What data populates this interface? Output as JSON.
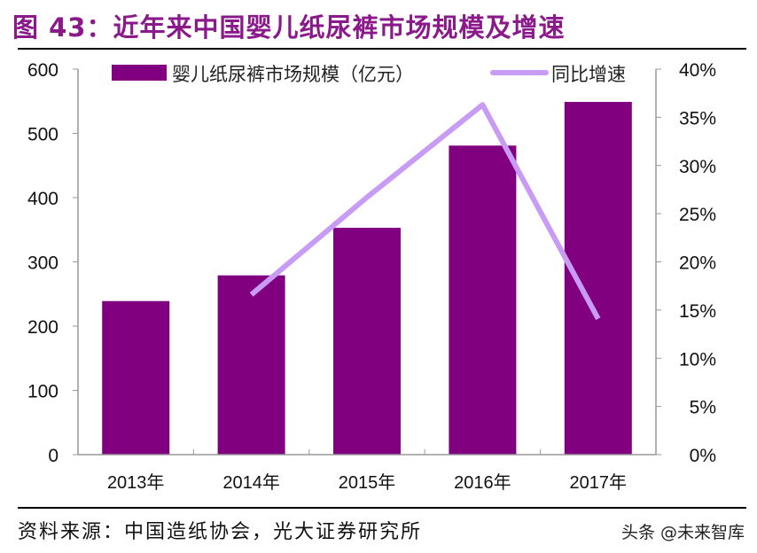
{
  "title": "图 43：近年来中国婴儿纸尿裤市场规模及增速",
  "source": "资料来源：中国造纸协会，光大证券研究所",
  "watermark": "头条 @未来智库",
  "chart_data": {
    "type": "bar+line",
    "categories": [
      "2013年",
      "2014年",
      "2015年",
      "2016年",
      "2017年"
    ],
    "series": [
      {
        "name": "婴儿纸尿裤市场规模（亿元）",
        "type": "bar",
        "axis": "left",
        "color": "#800080",
        "values": [
          239,
          279,
          353,
          481,
          549
        ]
      },
      {
        "name": "同比增速",
        "type": "line",
        "axis": "right",
        "color": "#c89bf5",
        "values": [
          null,
          16.6,
          26.7,
          36.3,
          14.1
        ]
      }
    ],
    "left_axis": {
      "range": [
        0,
        600
      ],
      "ticks": [
        "0",
        "100",
        "200",
        "300",
        "400",
        "500",
        "600"
      ]
    },
    "right_axis": {
      "range": [
        0,
        40
      ],
      "ticks": [
        "0%",
        "5%",
        "10%",
        "15%",
        "20%",
        "25%",
        "30%",
        "35%",
        "40%"
      ]
    },
    "legend": "top",
    "grid": false
  }
}
